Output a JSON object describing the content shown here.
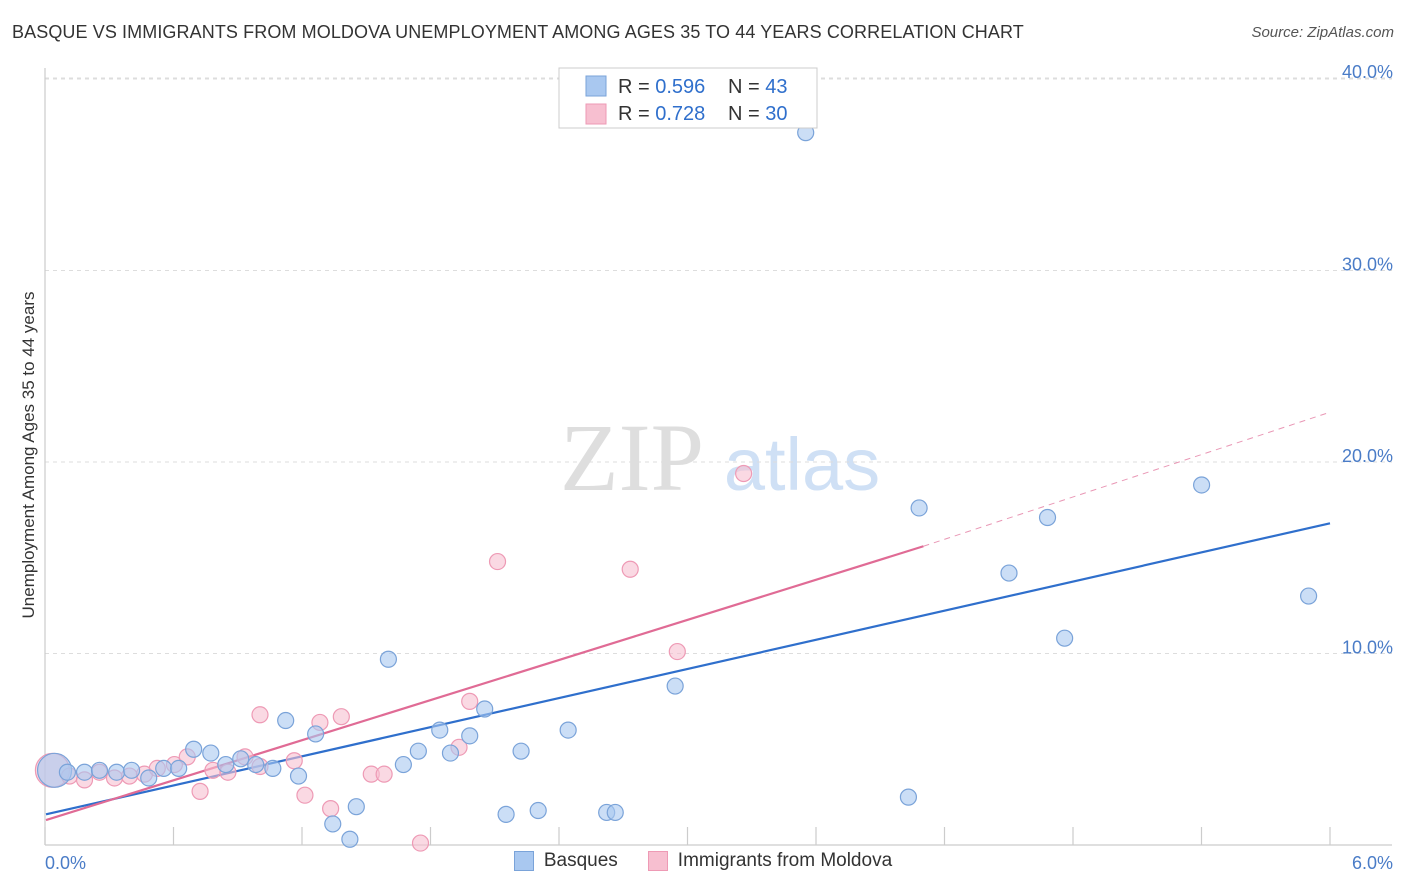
{
  "title": "BASQUE VS IMMIGRANTS FROM MOLDOVA UNEMPLOYMENT AMONG AGES 35 TO 44 YEARS CORRELATION CHART",
  "source": "Source: ZipAtlas.com",
  "watermark": {
    "zip": "ZIP",
    "atlas": "atlas"
  },
  "colors": {
    "blue_fill": "#a9c8f0",
    "blue_stroke": "#7aa3d9",
    "blue_line": "#2f6fcc",
    "pink_fill": "#f7bfd0",
    "pink_stroke": "#ee9ab5",
    "pink_line": "#e06b95",
    "grid": "#dddddd",
    "tick_text": "#4a7cc7"
  },
  "legend_stats": [
    {
      "r_label": "R = ",
      "r_value": "0.596",
      "n_label": "N = ",
      "n_value": "43"
    },
    {
      "r_label": "R = ",
      "r_value": "0.728",
      "n_label": "N = ",
      "n_value": "30"
    }
  ],
  "chart_data": {
    "type": "scatter",
    "title": "BASQUE VS IMMIGRANTS FROM MOLDOVA UNEMPLOYMENT AMONG AGES 35 TO 44 YEARS CORRELATION CHART",
    "xlabel": "",
    "ylabel": "Unemployment Among Ages 35 to 44 years",
    "xlim": [
      0,
      6
    ],
    "ylim": [
      0,
      40
    ],
    "x_tick_labels": [
      "0.0%",
      "6.0%"
    ],
    "y_ticks": [
      10,
      20,
      30,
      40
    ],
    "y_tick_labels": [
      "10.0%",
      "20.0%",
      "30.0%",
      "40.0%"
    ],
    "grid": true,
    "legend_position": "bottom-center",
    "series": [
      {
        "name": "Basques",
        "color": "#a9c8f0",
        "trend": {
          "x": [
            0,
            6
          ],
          "y": [
            1.6,
            16.8
          ]
        },
        "points": [
          {
            "x": 0.04,
            "y": 3.9,
            "big": true
          },
          {
            "x": 0.1,
            "y": 3.8
          },
          {
            "x": 0.18,
            "y": 3.8
          },
          {
            "x": 0.25,
            "y": 3.9
          },
          {
            "x": 0.33,
            "y": 3.8
          },
          {
            "x": 0.4,
            "y": 3.9
          },
          {
            "x": 0.48,
            "y": 3.5
          },
          {
            "x": 0.55,
            "y": 4.0
          },
          {
            "x": 0.62,
            "y": 4.0
          },
          {
            "x": 0.69,
            "y": 5.0
          },
          {
            "x": 0.77,
            "y": 4.8
          },
          {
            "x": 0.84,
            "y": 4.2
          },
          {
            "x": 0.91,
            "y": 4.5
          },
          {
            "x": 0.98,
            "y": 4.2
          },
          {
            "x": 1.06,
            "y": 4.0
          },
          {
            "x": 1.12,
            "y": 6.5
          },
          {
            "x": 1.18,
            "y": 3.6
          },
          {
            "x": 1.26,
            "y": 5.8
          },
          {
            "x": 1.34,
            "y": 1.1
          },
          {
            "x": 1.42,
            "y": 0.3
          },
          {
            "x": 1.45,
            "y": 2.0
          },
          {
            "x": 1.6,
            "y": 9.7
          },
          {
            "x": 1.67,
            "y": 4.2
          },
          {
            "x": 1.74,
            "y": 4.9
          },
          {
            "x": 1.84,
            "y": 6.0
          },
          {
            "x": 1.89,
            "y": 4.8
          },
          {
            "x": 1.98,
            "y": 5.7
          },
          {
            "x": 2.05,
            "y": 7.1
          },
          {
            "x": 2.15,
            "y": 1.6
          },
          {
            "x": 2.22,
            "y": 4.9
          },
          {
            "x": 2.3,
            "y": 1.8
          },
          {
            "x": 2.44,
            "y": 6.0
          },
          {
            "x": 2.62,
            "y": 1.7
          },
          {
            "x": 2.66,
            "y": 1.7
          },
          {
            "x": 2.94,
            "y": 8.3
          },
          {
            "x": 3.55,
            "y": 37.2
          },
          {
            "x": 4.03,
            "y": 2.5
          },
          {
            "x": 4.08,
            "y": 17.6
          },
          {
            "x": 4.5,
            "y": 14.2
          },
          {
            "x": 4.68,
            "y": 17.1
          },
          {
            "x": 4.76,
            "y": 10.8
          },
          {
            "x": 5.4,
            "y": 18.8
          },
          {
            "x": 5.9,
            "y": 13.0
          }
        ]
      },
      {
        "name": "Immigrants from Moldova",
        "color": "#f7bfd0",
        "trend": {
          "x": [
            0,
            4.1
          ],
          "y": [
            1.3,
            15.6
          ]
        },
        "trend_dashed": {
          "x": [
            4.1,
            6
          ],
          "y": [
            15.6,
            22.6
          ]
        },
        "points": [
          {
            "x": 0.03,
            "y": 3.9,
            "big": true
          },
          {
            "x": 0.11,
            "y": 3.6
          },
          {
            "x": 0.18,
            "y": 3.4
          },
          {
            "x": 0.25,
            "y": 3.8
          },
          {
            "x": 0.32,
            "y": 3.5
          },
          {
            "x": 0.39,
            "y": 3.6
          },
          {
            "x": 0.46,
            "y": 3.7
          },
          {
            "x": 0.52,
            "y": 4.0
          },
          {
            "x": 0.6,
            "y": 4.2
          },
          {
            "x": 0.66,
            "y": 4.6
          },
          {
            "x": 0.72,
            "y": 2.8
          },
          {
            "x": 0.78,
            "y": 3.9
          },
          {
            "x": 0.85,
            "y": 3.8
          },
          {
            "x": 0.93,
            "y": 4.6
          },
          {
            "x": 1.0,
            "y": 4.1
          },
          {
            "x": 1.0,
            "y": 6.8
          },
          {
            "x": 1.16,
            "y": 4.4
          },
          {
            "x": 1.21,
            "y": 2.6
          },
          {
            "x": 1.28,
            "y": 6.4
          },
          {
            "x": 1.33,
            "y": 1.9
          },
          {
            "x": 1.38,
            "y": 6.7
          },
          {
            "x": 1.52,
            "y": 3.7
          },
          {
            "x": 1.58,
            "y": 3.7
          },
          {
            "x": 1.75,
            "y": 0.1
          },
          {
            "x": 1.93,
            "y": 5.1
          },
          {
            "x": 1.98,
            "y": 7.5
          },
          {
            "x": 2.11,
            "y": 14.8
          },
          {
            "x": 2.73,
            "y": 14.4
          },
          {
            "x": 2.95,
            "y": 10.1
          },
          {
            "x": 3.26,
            "y": 19.4
          }
        ]
      }
    ]
  }
}
